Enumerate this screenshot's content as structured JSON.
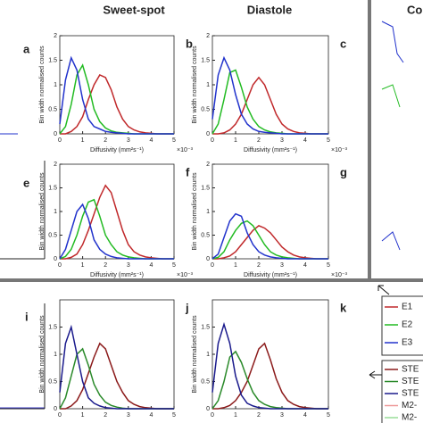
{
  "column_titles": [
    "Sweet-spot",
    "Diastole",
    "Co"
  ],
  "partial_panels": {
    "labels": [
      "a",
      "e",
      "i"
    ]
  },
  "legend_1": [
    "E1",
    "E2",
    "E3"
  ],
  "legend_2": [
    "STE",
    "STE",
    "STE",
    "M2-",
    "M2-"
  ],
  "chart_data": [
    {
      "type": "line",
      "label": "b",
      "x_label": "Diffusivity (mm²s⁻¹)",
      "y_label": "Bin width normalised counts",
      "x_scale_label": "×10⁻³",
      "x": [
        0,
        0.25,
        0.5,
        0.75,
        1,
        1.25,
        1.5,
        1.75,
        2,
        2.25,
        2.5,
        2.75,
        3,
        3.25,
        3.5,
        3.75,
        4,
        4.25,
        4.5,
        4.75,
        5
      ],
      "series": [
        {
          "color": "#c0282a",
          "values": [
            0,
            0,
            0.05,
            0.15,
            0.35,
            0.7,
            1.0,
            1.2,
            1.15,
            0.9,
            0.55,
            0.3,
            0.15,
            0.08,
            0.04,
            0.02,
            0.01,
            0,
            0,
            0,
            0
          ]
        },
        {
          "color": "#22bb22",
          "values": [
            0,
            0.15,
            0.6,
            1.2,
            1.4,
            1.0,
            0.5,
            0.25,
            0.12,
            0.06,
            0.03,
            0.02,
            0.01,
            0,
            0,
            0,
            0,
            0,
            0,
            0,
            0
          ]
        },
        {
          "color": "#2233cc",
          "values": [
            0.2,
            1.1,
            1.55,
            1.3,
            0.7,
            0.3,
            0.15,
            0.1,
            0.05,
            0.03,
            0.02,
            0.01,
            0,
            0,
            0,
            0,
            0,
            0,
            0,
            0,
            0
          ]
        }
      ],
      "xlim": [
        0,
        5
      ],
      "ylim": [
        0,
        2
      ],
      "xticks": [
        0,
        1,
        2,
        3,
        4,
        5
      ],
      "yticks": [
        0,
        0.5,
        1,
        1.5,
        2
      ]
    },
    {
      "type": "line",
      "label": "c",
      "x_label": "Diffusivity (mm²s⁻¹)",
      "y_label": "Bin width normalised counts",
      "x_scale_label": "×10⁻³",
      "x": [
        0,
        0.25,
        0.5,
        0.75,
        1,
        1.25,
        1.5,
        1.75,
        2,
        2.25,
        2.5,
        2.75,
        3,
        3.25,
        3.5,
        3.75,
        4,
        4.25,
        4.5,
        4.75,
        5
      ],
      "series": [
        {
          "color": "#c0282a",
          "values": [
            0,
            0,
            0.02,
            0.08,
            0.2,
            0.4,
            0.7,
            1.0,
            1.15,
            1.0,
            0.7,
            0.4,
            0.2,
            0.1,
            0.05,
            0.02,
            0.01,
            0,
            0,
            0,
            0
          ]
        },
        {
          "color": "#22bb22",
          "values": [
            0,
            0.2,
            0.7,
            1.25,
            1.3,
            0.95,
            0.55,
            0.3,
            0.15,
            0.08,
            0.04,
            0.02,
            0.01,
            0,
            0,
            0,
            0,
            0,
            0,
            0,
            0
          ]
        },
        {
          "color": "#2233cc",
          "values": [
            0.3,
            1.2,
            1.55,
            1.3,
            0.8,
            0.4,
            0.2,
            0.1,
            0.05,
            0.03,
            0.02,
            0.01,
            0,
            0,
            0,
            0,
            0,
            0,
            0,
            0,
            0
          ]
        }
      ],
      "xlim": [
        0,
        5
      ],
      "ylim": [
        0,
        2
      ],
      "xticks": [
        0,
        1,
        2,
        3,
        4,
        5
      ],
      "yticks": [
        0,
        0.5,
        1,
        1.5,
        2
      ]
    },
    {
      "type": "line",
      "label": "f",
      "x_label": "Diffusivity (mm²s⁻¹)",
      "y_label": "Bin width normalised counts",
      "x_scale_label": "×10⁻³",
      "x": [
        0,
        0.25,
        0.5,
        0.75,
        1,
        1.25,
        1.5,
        1.75,
        2,
        2.25,
        2.5,
        2.75,
        3,
        3.25,
        3.5,
        3.75,
        4,
        4.25,
        4.5,
        4.75,
        5
      ],
      "series": [
        {
          "color": "#c0282a",
          "values": [
            0,
            0,
            0.03,
            0.1,
            0.3,
            0.6,
            0.95,
            1.3,
            1.55,
            1.4,
            1.0,
            0.6,
            0.3,
            0.15,
            0.08,
            0.04,
            0.02,
            0.01,
            0,
            0,
            0
          ]
        },
        {
          "color": "#22bb22",
          "values": [
            0,
            0.05,
            0.2,
            0.5,
            0.9,
            1.2,
            1.25,
            0.9,
            0.5,
            0.3,
            0.15,
            0.08,
            0.04,
            0.02,
            0.01,
            0,
            0,
            0,
            0,
            0,
            0
          ]
        },
        {
          "color": "#2233cc",
          "values": [
            0,
            0.2,
            0.6,
            1.0,
            1.15,
            0.85,
            0.4,
            0.2,
            0.1,
            0.05,
            0.02,
            0.01,
            0,
            0,
            0,
            0,
            0,
            0,
            0,
            0,
            0
          ]
        }
      ],
      "xlim": [
        0,
        5
      ],
      "ylim": [
        0,
        2
      ],
      "xticks": [
        0,
        1,
        2,
        3,
        4,
        5
      ],
      "yticks": [
        0,
        0.5,
        1,
        1.5,
        2
      ]
    },
    {
      "type": "line",
      "label": "g",
      "x_label": "Diffusivity (mm²s⁻¹)",
      "y_label": "Bin width normalised counts",
      "x_scale_label": "×10⁻³",
      "x": [
        0,
        0.25,
        0.5,
        0.75,
        1,
        1.25,
        1.5,
        1.75,
        2,
        2.25,
        2.5,
        2.75,
        3,
        3.25,
        3.5,
        3.75,
        4,
        4.25,
        4.5,
        4.75,
        5
      ],
      "series": [
        {
          "color": "#c0282a",
          "values": [
            0,
            0,
            0.02,
            0.06,
            0.15,
            0.3,
            0.45,
            0.6,
            0.7,
            0.65,
            0.55,
            0.4,
            0.25,
            0.15,
            0.08,
            0.04,
            0.02,
            0.01,
            0,
            0,
            0
          ]
        },
        {
          "color": "#22bb22",
          "values": [
            0,
            0.03,
            0.15,
            0.4,
            0.6,
            0.75,
            0.8,
            0.7,
            0.5,
            0.3,
            0.15,
            0.08,
            0.04,
            0.02,
            0.01,
            0,
            0,
            0,
            0,
            0,
            0
          ]
        },
        {
          "color": "#2233cc",
          "values": [
            0,
            0.1,
            0.45,
            0.8,
            0.95,
            0.9,
            0.55,
            0.3,
            0.15,
            0.08,
            0.04,
            0.02,
            0.01,
            0,
            0,
            0,
            0,
            0,
            0,
            0,
            0
          ]
        }
      ],
      "xlim": [
        0,
        5
      ],
      "ylim": [
        0,
        2
      ],
      "xticks": [
        0,
        1,
        2,
        3,
        4,
        5
      ],
      "yticks": [
        0,
        0.5,
        1,
        1.5,
        2
      ]
    },
    {
      "type": "line",
      "label": "j",
      "y_label": "Bin width normalised counts",
      "x": [
        0,
        0.25,
        0.5,
        0.75,
        1,
        1.25,
        1.5,
        1.75,
        2,
        2.25,
        2.5,
        2.75,
        3,
        3.25,
        3.5,
        3.75,
        4,
        4.25,
        4.5,
        4.75,
        5
      ],
      "series": [
        {
          "color": "#8b1a1a",
          "values": [
            0,
            0,
            0.05,
            0.15,
            0.35,
            0.65,
            0.95,
            1.2,
            1.1,
            0.8,
            0.5,
            0.3,
            0.15,
            0.08,
            0.04,
            0.02,
            0.01,
            0,
            0,
            0,
            0
          ]
        },
        {
          "color": "#2a8a2a",
          "values": [
            0,
            0.2,
            0.6,
            1.0,
            1.1,
            0.8,
            0.45,
            0.25,
            0.12,
            0.06,
            0.03,
            0.01,
            0,
            0,
            0,
            0,
            0,
            0,
            0,
            0,
            0
          ]
        },
        {
          "color": "#1a1a8c",
          "values": [
            0.3,
            1.2,
            1.5,
            1.0,
            0.5,
            0.2,
            0.1,
            0.05,
            0.02,
            0.01,
            0,
            0,
            0,
            0,
            0,
            0,
            0,
            0,
            0,
            0,
            0
          ]
        }
      ],
      "xlim": [
        0,
        5
      ],
      "ylim": [
        0,
        2
      ],
      "xticks": [
        0,
        1,
        2,
        3,
        4,
        5
      ],
      "yticks": [
        0,
        0.5,
        1,
        1.5
      ]
    },
    {
      "type": "line",
      "label": "k",
      "y_label": "Bin width normalised counts",
      "x": [
        0,
        0.25,
        0.5,
        0.75,
        1,
        1.25,
        1.5,
        1.75,
        2,
        2.25,
        2.5,
        2.75,
        3,
        3.25,
        3.5,
        3.75,
        4,
        4.25,
        4.5,
        4.75,
        5
      ],
      "series": [
        {
          "color": "#8b1a1a",
          "values": [
            0,
            0,
            0.02,
            0.06,
            0.15,
            0.3,
            0.5,
            0.8,
            1.1,
            1.2,
            0.9,
            0.55,
            0.3,
            0.15,
            0.08,
            0.04,
            0.02,
            0.01,
            0,
            0,
            0
          ]
        },
        {
          "color": "#2a8a2a",
          "values": [
            0,
            0.15,
            0.5,
            0.95,
            1.05,
            0.85,
            0.55,
            0.3,
            0.15,
            0.08,
            0.04,
            0.02,
            0.01,
            0,
            0,
            0,
            0,
            0,
            0,
            0,
            0
          ]
        },
        {
          "color": "#1a1a8c",
          "values": [
            0.3,
            1.2,
            1.55,
            1.2,
            0.6,
            0.25,
            0.1,
            0.05,
            0.02,
            0.01,
            0,
            0,
            0,
            0,
            0,
            0,
            0,
            0,
            0,
            0,
            0
          ]
        }
      ],
      "xlim": [
        0,
        5
      ],
      "ylim": [
        0,
        2
      ],
      "xticks": [
        0,
        1,
        2,
        3,
        4,
        5
      ],
      "yticks": [
        0,
        0.5,
        1,
        1.5
      ]
    }
  ]
}
